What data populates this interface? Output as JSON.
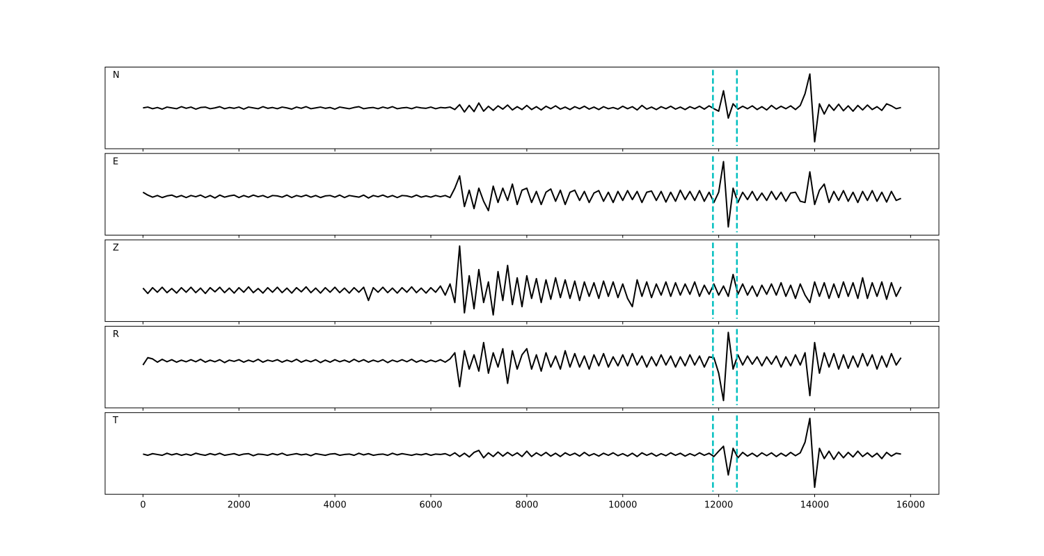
{
  "chart_data": {
    "type": "line",
    "subplots": true,
    "x": [
      0,
      100,
      200,
      300,
      400,
      500,
      600,
      700,
      800,
      900,
      1000,
      1100,
      1200,
      1300,
      1400,
      1500,
      1600,
      1700,
      1800,
      1900,
      2000,
      2100,
      2200,
      2300,
      2400,
      2500,
      2600,
      2700,
      2800,
      2900,
      3000,
      3100,
      3200,
      3300,
      3400,
      3500,
      3600,
      3700,
      3800,
      3900,
      4000,
      4100,
      4200,
      4300,
      4400,
      4500,
      4600,
      4700,
      4800,
      4900,
      5000,
      5100,
      5200,
      5300,
      5400,
      5500,
      5600,
      5700,
      5800,
      5900,
      6000,
      6100,
      6200,
      6300,
      6400,
      6500,
      6600,
      6700,
      6800,
      6900,
      7000,
      7100,
      7200,
      7300,
      7400,
      7500,
      7600,
      7700,
      7800,
      7900,
      8000,
      8100,
      8200,
      8300,
      8400,
      8500,
      8600,
      8700,
      8800,
      8900,
      9000,
      9100,
      9200,
      9300,
      9400,
      9500,
      9600,
      9700,
      9800,
      9900,
      10000,
      10100,
      10200,
      10300,
      10400,
      10500,
      10600,
      10700,
      10800,
      10900,
      11000,
      11100,
      11200,
      11300,
      11400,
      11500,
      11600,
      11700,
      11800,
      11900,
      12000,
      12100,
      12200,
      12300,
      12400,
      12500,
      12600,
      12700,
      12800,
      12900,
      13000,
      13100,
      13200,
      13300,
      13400,
      13500,
      13600,
      13700,
      13800,
      13900,
      14000,
      14100,
      14200,
      14300,
      14400,
      14500,
      14600,
      14700,
      14800,
      14900,
      15000,
      15100,
      15200,
      15300,
      15400,
      15500,
      15600,
      15700,
      15800
    ],
    "xlim": [
      -790,
      16590
    ],
    "xticks": [
      0,
      2000,
      4000,
      6000,
      8000,
      10000,
      12000,
      14000,
      16000
    ],
    "vlines": [
      11880,
      12380
    ],
    "vline_color": "#00bfbf",
    "series": [
      {
        "name": "N",
        "color": "#000000",
        "ylim": [
          -1,
          1
        ],
        "values": [
          0,
          0.02,
          -0.02,
          0.01,
          -0.03,
          0.02,
          0,
          -0.02,
          0.03,
          -0.01,
          0.02,
          -0.03,
          0.01,
          0.02,
          -0.02,
          0,
          0.03,
          -0.02,
          0.01,
          -0.01,
          0.02,
          -0.03,
          0.02,
          0,
          -0.02,
          0.03,
          -0.01,
          0.01,
          -0.02,
          0.02,
          0,
          -0.03,
          0.02,
          -0.01,
          0.03,
          -0.02,
          0,
          0.02,
          -0.01,
          0.01,
          -0.03,
          0.02,
          0,
          -0.02,
          0.01,
          0.03,
          -0.02,
          0,
          0.01,
          -0.02,
          0.02,
          -0.01,
          0.03,
          -0.02,
          0,
          0.01,
          -0.02,
          0.02,
          0,
          -0.01,
          0.02,
          -0.02,
          0.01,
          0,
          0.02,
          -0.04,
          0.08,
          -0.1,
          0.06,
          -0.09,
          0.12,
          -0.08,
          0.04,
          -0.06,
          0.05,
          -0.03,
          0.07,
          -0.05,
          0.03,
          -0.04,
          0.06,
          -0.04,
          0.03,
          -0.05,
          0.04,
          -0.02,
          0.05,
          -0.03,
          0.02,
          -0.04,
          0.03,
          -0.02,
          0.04,
          -0.03,
          0.02,
          -0.04,
          0.03,
          -0.02,
          0.01,
          -0.03,
          0.04,
          -0.02,
          0.03,
          -0.05,
          0.06,
          -0.03,
          0.02,
          -0.04,
          0.03,
          -0.02,
          0.04,
          -0.03,
          0.02,
          -0.04,
          0.03,
          -0.02,
          0.04,
          -0.03,
          0.05,
          -0.02,
          -0.08,
          0.42,
          -0.25,
          0.1,
          -0.03,
          0.04,
          -0.02,
          0.05,
          -0.04,
          0.03,
          -0.05,
          0.06,
          -0.03,
          0.04,
          -0.02,
          0.05,
          -0.04,
          0.06,
          0.35,
          0.83,
          -0.83,
          0.1,
          -0.15,
          0.08,
          -0.06,
          0.09,
          -0.07,
          0.05,
          -0.08,
          0.06,
          -0.05,
          0.07,
          -0.04,
          0.03,
          -0.06,
          0.1,
          0.05,
          -0.02,
          0.01
        ]
      },
      {
        "name": "E",
        "color": "#000000",
        "ylim": [
          -0.95,
          1.05
        ],
        "values": [
          0.1,
          0.03,
          -0.02,
          0.02,
          -0.03,
          0.01,
          0.03,
          -0.02,
          0.02,
          -0.03,
          0.02,
          -0.01,
          0.03,
          -0.03,
          0.02,
          -0.04,
          0.03,
          -0.02,
          0.01,
          0.03,
          -0.03,
          0.02,
          -0.02,
          0.03,
          -0.01,
          0.02,
          -0.03,
          0.02,
          0.01,
          -0.02,
          0.03,
          -0.03,
          0.02,
          -0.01,
          0.03,
          -0.02,
          0.02,
          -0.03,
          0.01,
          0.02,
          -0.02,
          0.03,
          -0.03,
          0.02,
          0,
          -0.02,
          0.03,
          -0.04,
          0.02,
          -0.01,
          0.03,
          -0.02,
          0.02,
          -0.03,
          0.02,
          0.01,
          -0.02,
          0.03,
          -0.02,
          0.01,
          -0.02,
          0.02,
          -0.01,
          0.02,
          -0.03,
          0.2,
          0.5,
          -0.25,
          0.15,
          -0.3,
          0.2,
          -0.12,
          -0.35,
          0.25,
          -0.15,
          0.2,
          -0.1,
          0.3,
          -0.2,
          0.15,
          0.2,
          -0.15,
          0.12,
          -0.2,
          0.1,
          0.18,
          -0.12,
          0.15,
          -0.2,
          0.1,
          0.15,
          -0.1,
          0.12,
          -0.15,
          0.08,
          0.14,
          -0.12,
          0.1,
          -0.15,
          0.12,
          -0.1,
          0.14,
          -0.08,
          0.12,
          -0.15,
          0.1,
          0.13,
          -0.1,
          0.12,
          -0.14,
          0.1,
          -0.12,
          0.15,
          -0.08,
          0.12,
          -0.1,
          0.14,
          -0.12,
          0.1,
          -0.15,
          0.1,
          0.85,
          -0.75,
          0.2,
          -0.15,
          0.1,
          -0.08,
          0.12,
          -0.1,
          0.08,
          -0.1,
          0.12,
          -0.08,
          0.1,
          -0.12,
          0.08,
          0.1,
          -0.12,
          -0.15,
          0.6,
          -0.2,
          0.15,
          0.3,
          -0.15,
          0.12,
          -0.1,
          0.14,
          -0.12,
          0.1,
          -0.15,
          0.12,
          -0.1,
          0.14,
          -0.12,
          0.1,
          -0.14,
          0.12,
          -0.1,
          -0.05
        ]
      },
      {
        "name": "Z",
        "color": "#000000",
        "ylim": [
          -0.76,
          1.22
        ],
        "values": [
          0.05,
          -0.08,
          0.06,
          -0.05,
          0.07,
          -0.06,
          0.04,
          -0.07,
          0.06,
          -0.05,
          0.07,
          -0.06,
          0.05,
          -0.08,
          0.06,
          -0.04,
          0.07,
          -0.06,
          0.05,
          -0.07,
          0.06,
          -0.05,
          0.08,
          -0.06,
          0.04,
          -0.07,
          0.06,
          -0.05,
          0.07,
          -0.06,
          0.05,
          -0.07,
          0.06,
          -0.04,
          0.08,
          -0.06,
          0.05,
          -0.07,
          0.06,
          -0.05,
          0.07,
          -0.06,
          0.05,
          -0.07,
          0.06,
          -0.05,
          0.07,
          -0.25,
          0.06,
          -0.05,
          0.07,
          -0.06,
          0.05,
          -0.07,
          0.06,
          -0.05,
          0.08,
          -0.06,
          0.05,
          -0.07,
          0.06,
          -0.05,
          0.1,
          -0.12,
          0.15,
          -0.3,
          1.07,
          -0.55,
          0.35,
          -0.45,
          0.5,
          -0.3,
          0.2,
          -0.6,
          0.45,
          -0.25,
          0.6,
          -0.35,
          0.3,
          -0.4,
          0.35,
          -0.2,
          0.28,
          -0.3,
          0.25,
          -0.22,
          0.3,
          -0.18,
          0.25,
          -0.2,
          0.22,
          -0.25,
          0.2,
          -0.15,
          0.18,
          -0.2,
          0.22,
          -0.15,
          0.2,
          -0.18,
          0.15,
          -0.2,
          -0.4,
          0.25,
          -0.15,
          0.2,
          -0.18,
          0.15,
          -0.12,
          0.2,
          -0.15,
          0.18,
          -0.12,
          0.15,
          -0.1,
          0.2,
          -0.15,
          0.12,
          -0.1,
          0.15,
          -0.12,
          0.1,
          -0.15,
          0.38,
          -0.1,
          0.15,
          -0.12,
          0.1,
          -0.15,
          0.12,
          -0.1,
          0.15,
          -0.12,
          0.18,
          -0.15,
          0.12,
          -0.2,
          0.15,
          -0.12,
          -0.3,
          0.2,
          -0.15,
          0.18,
          -0.2,
          0.15,
          -0.18,
          0.2,
          -0.15,
          0.18,
          -0.2,
          0.3,
          -0.2,
          0.18,
          -0.15,
          0.2,
          -0.22,
          0.18,
          -0.15,
          0.08
        ]
      },
      {
        "name": "R",
        "color": "#000000",
        "ylim": [
          -1.15,
          0.85
        ],
        "values": [
          -0.1,
          0.08,
          0.05,
          -0.03,
          0.04,
          -0.02,
          0.03,
          -0.03,
          0.02,
          -0.02,
          0.03,
          -0.02,
          0.04,
          -0.03,
          0.02,
          -0.02,
          0.03,
          -0.04,
          0.02,
          -0.01,
          0.03,
          -0.03,
          0.02,
          -0.02,
          0.04,
          -0.03,
          0.02,
          -0.01,
          0.03,
          -0.03,
          0.02,
          -0.02,
          0.04,
          -0.03,
          0.02,
          -0.02,
          0.03,
          -0.04,
          0.02,
          -0.03,
          0.03,
          -0.02,
          0.02,
          -0.03,
          0.04,
          -0.02,
          0.03,
          -0.03,
          0.02,
          -0.02,
          0.03,
          -0.04,
          0.02,
          -0.02,
          0.03,
          -0.02,
          0.04,
          -0.03,
          0.02,
          -0.03,
          0.02,
          -0.02,
          0.03,
          -0.03,
          0.05,
          0.2,
          -0.63,
          0.25,
          -0.2,
          0.15,
          -0.25,
          0.45,
          -0.3,
          0.2,
          -0.15,
          0.3,
          -0.55,
          0.25,
          -0.2,
          0.15,
          0.3,
          -0.2,
          0.15,
          -0.25,
          0.2,
          -0.15,
          0.12,
          -0.2,
          0.25,
          -0.15,
          0.18,
          -0.15,
          0.12,
          -0.2,
          0.15,
          -0.12,
          0.18,
          -0.15,
          0.1,
          -0.12,
          0.15,
          -0.12,
          0.18,
          -0.1,
          0.12,
          -0.15,
          0.1,
          -0.12,
          0.15,
          -0.1,
          0.12,
          -0.15,
          0.1,
          -0.12,
          0.15,
          -0.1,
          0.12,
          -0.15,
          0.1,
          0.08,
          -0.3,
          -0.97,
          0.7,
          -0.2,
          0.15,
          -0.1,
          0.12,
          -0.08,
          0.1,
          -0.12,
          0.1,
          -0.08,
          0.12,
          -0.15,
          0.1,
          -0.12,
          0.15,
          -0.1,
          0.2,
          -0.85,
          0.45,
          -0.3,
          0.2,
          -0.15,
          0.18,
          -0.2,
          0.15,
          -0.18,
          0.12,
          -0.15,
          0.18,
          -0.12,
          0.15,
          -0.2,
          0.12,
          -0.15,
          0.18,
          -0.1,
          0.08
        ]
      },
      {
        "name": "T",
        "color": "#000000",
        "ylim": [
          -0.97,
          1.02
        ],
        "values": [
          0.01,
          -0.02,
          0.02,
          0,
          -0.02,
          0.03,
          -0.01,
          0.02,
          -0.02,
          0.01,
          -0.02,
          0.03,
          0,
          -0.02,
          0.02,
          -0.01,
          0.03,
          -0.02,
          0,
          0.02,
          -0.02,
          0.01,
          0.02,
          -0.03,
          0.01,
          0,
          -0.02,
          0.02,
          -0.01,
          0.03,
          -0.02,
          0,
          0.02,
          -0.01,
          0.01,
          -0.03,
          0.02,
          0,
          -0.02,
          0.01,
          0.02,
          -0.02,
          0,
          0.01,
          -0.02,
          0.03,
          -0.01,
          0.02,
          -0.02,
          0,
          0.01,
          -0.02,
          0.03,
          -0.01,
          0.02,
          0,
          -0.02,
          0.01,
          -0.01,
          0.02,
          -0.02,
          0.01,
          0,
          0.02,
          -0.03,
          0.04,
          -0.05,
          0.03,
          -0.06,
          0.05,
          0.1,
          -0.08,
          0.04,
          -0.05,
          0.06,
          -0.04,
          0.05,
          -0.03,
          0.04,
          -0.05,
          0.08,
          -0.05,
          0.04,
          -0.03,
          0.05,
          -0.04,
          0.03,
          -0.05,
          0.04,
          -0.02,
          0.03,
          -0.04,
          0.05,
          -0.03,
          0.02,
          -0.04,
          0.03,
          -0.02,
          0.04,
          -0.03,
          0.02,
          -0.04,
          0.03,
          -0.05,
          0.04,
          -0.02,
          0.03,
          -0.04,
          0.02,
          -0.03,
          0.04,
          -0.02,
          0.03,
          -0.04,
          0.02,
          -0.03,
          0.04,
          -0.02,
          0.03,
          -0.05,
          0.08,
          0.2,
          -0.5,
          0.15,
          -0.08,
          0.05,
          -0.04,
          0.03,
          -0.05,
          0.04,
          -0.03,
          0.04,
          -0.05,
          0.03,
          -0.04,
          0.05,
          -0.03,
          0.04,
          0.3,
          0.88,
          -0.8,
          0.15,
          -0.1,
          0.08,
          -0.12,
          0.06,
          -0.08,
          0.05,
          -0.06,
          0.08,
          -0.05,
          0.04,
          -0.06,
          0.03,
          -0.1,
          0.05,
          -0.04,
          0.03,
          0.01
        ]
      }
    ]
  }
}
